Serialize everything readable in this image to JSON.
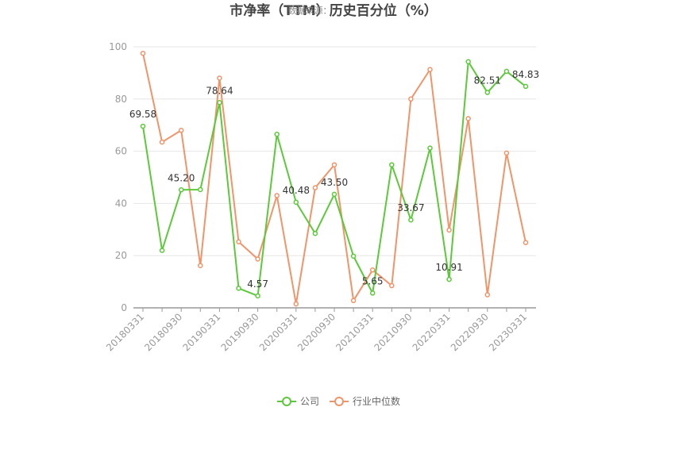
{
  "title": "市净率（TTM）历史百分位（%）",
  "subtitle": "数据来源：",
  "chart_data": {
    "type": "line",
    "title": "市净率（TTM）历史百分位（%）",
    "subtitle": "数据来源：",
    "ylim": [
      0,
      100
    ],
    "yticks": [
      0,
      20,
      40,
      60,
      80,
      100
    ],
    "grid": true,
    "legend_position": "bottom",
    "x": [
      "20180331",
      "20180630",
      "20180930",
      "20181231",
      "20190331",
      "20190630",
      "20190930",
      "20191231",
      "20200331",
      "20200630",
      "20200930",
      "20201231",
      "20210331",
      "20210630",
      "20210930",
      "20211231",
      "20220331",
      "20220630",
      "20220930",
      "20221231",
      "20230331"
    ],
    "x_tick_labels": [
      "20180331",
      "20180930",
      "20190331",
      "20190930",
      "20200331",
      "20200930",
      "20210331",
      "20210930",
      "20220331",
      "20220930",
      "20230331"
    ],
    "series": [
      {
        "name": "公司",
        "color": "#5cc93a",
        "values": [
          69.58,
          22.0,
          45.2,
          45.3,
          78.64,
          7.5,
          4.57,
          66.5,
          40.48,
          28.5,
          43.5,
          19.8,
          5.65,
          54.8,
          33.67,
          61.2,
          10.91,
          94.3,
          82.51,
          90.6,
          84.83
        ]
      },
      {
        "name": "行业中位数",
        "color": "#f0946a",
        "values": [
          97.5,
          63.5,
          68.0,
          16.2,
          88.0,
          25.3,
          18.7,
          43.0,
          1.5,
          46.0,
          54.8,
          2.8,
          14.5,
          8.5,
          80.0,
          91.3,
          29.8,
          72.5,
          5.0,
          59.3,
          25.0
        ]
      }
    ],
    "labeled_points": [
      {
        "index": 0,
        "text": "69.58"
      },
      {
        "index": 2,
        "text": "45.20"
      },
      {
        "index": 4,
        "text": "78.64"
      },
      {
        "index": 6,
        "text": "4.57"
      },
      {
        "index": 8,
        "text": "40.48"
      },
      {
        "index": 10,
        "text": "43.50"
      },
      {
        "index": 12,
        "text": "5.65"
      },
      {
        "index": 14,
        "text": "33.67"
      },
      {
        "index": 16,
        "text": "10.91"
      },
      {
        "index": 18,
        "text": "82.51"
      },
      {
        "index": 20,
        "text": "84.83"
      }
    ]
  }
}
